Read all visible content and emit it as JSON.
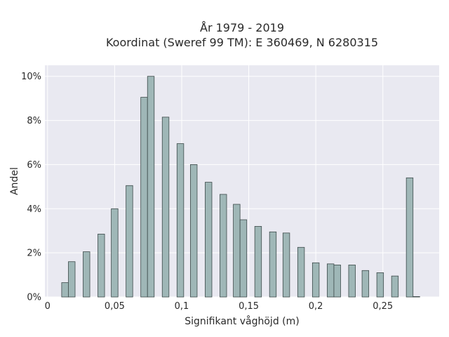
{
  "chart_data": {
    "type": "bar",
    "title_lines": [
      "År 1979 - 2019",
      "Koordinat (Sweref 99 TM): E 360469, N 6280315"
    ],
    "xlabel": "Signifikant våghöjd (m)",
    "ylabel": "Andel",
    "xlim": [
      -0.002,
      0.292
    ],
    "ylim": [
      0,
      10.5
    ],
    "x_ticks": [
      {
        "value": 0,
        "label": "0"
      },
      {
        "value": 0.05,
        "label": "0,05"
      },
      {
        "value": 0.1,
        "label": "0,1"
      },
      {
        "value": 0.15,
        "label": "0,15"
      },
      {
        "value": 0.2,
        "label": "0,2"
      },
      {
        "value": 0.25,
        "label": "0,25"
      }
    ],
    "y_ticks": [
      {
        "value": 0,
        "label": "0%"
      },
      {
        "value": 2,
        "label": "2%"
      },
      {
        "value": 4,
        "label": "4%"
      },
      {
        "value": 6,
        "label": "6%"
      },
      {
        "value": 8,
        "label": "8%"
      },
      {
        "value": 10,
        "label": "10%"
      }
    ],
    "grid": true,
    "bar_width": 0.005,
    "bars": [
      {
        "x": 0.013,
        "value": 0.65
      },
      {
        "x": 0.018,
        "value": 1.6
      },
      {
        "x": 0.029,
        "value": 2.05
      },
      {
        "x": 0.04,
        "value": 2.85
      },
      {
        "x": 0.05,
        "value": 4.0
      },
      {
        "x": 0.061,
        "value": 5.05
      },
      {
        "x": 0.072,
        "value": 9.05
      },
      {
        "x": 0.077,
        "value": 10.0
      },
      {
        "x": 0.088,
        "value": 8.15
      },
      {
        "x": 0.099,
        "value": 6.95
      },
      {
        "x": 0.109,
        "value": 6.0
      },
      {
        "x": 0.12,
        "value": 5.2
      },
      {
        "x": 0.131,
        "value": 4.65
      },
      {
        "x": 0.141,
        "value": 4.2
      },
      {
        "x": 0.146,
        "value": 3.5
      },
      {
        "x": 0.157,
        "value": 3.2
      },
      {
        "x": 0.168,
        "value": 2.95
      },
      {
        "x": 0.178,
        "value": 2.9
      },
      {
        "x": 0.189,
        "value": 2.25
      },
      {
        "x": 0.2,
        "value": 1.55
      },
      {
        "x": 0.211,
        "value": 1.5
      },
      {
        "x": 0.216,
        "value": 1.45
      },
      {
        "x": 0.227,
        "value": 1.45
      },
      {
        "x": 0.237,
        "value": 1.2
      },
      {
        "x": 0.248,
        "value": 1.1
      },
      {
        "x": 0.259,
        "value": 0.95
      },
      {
        "x": 0.27,
        "value": 5.4
      },
      {
        "x": 0.275,
        "value": 0.02
      }
    ]
  }
}
